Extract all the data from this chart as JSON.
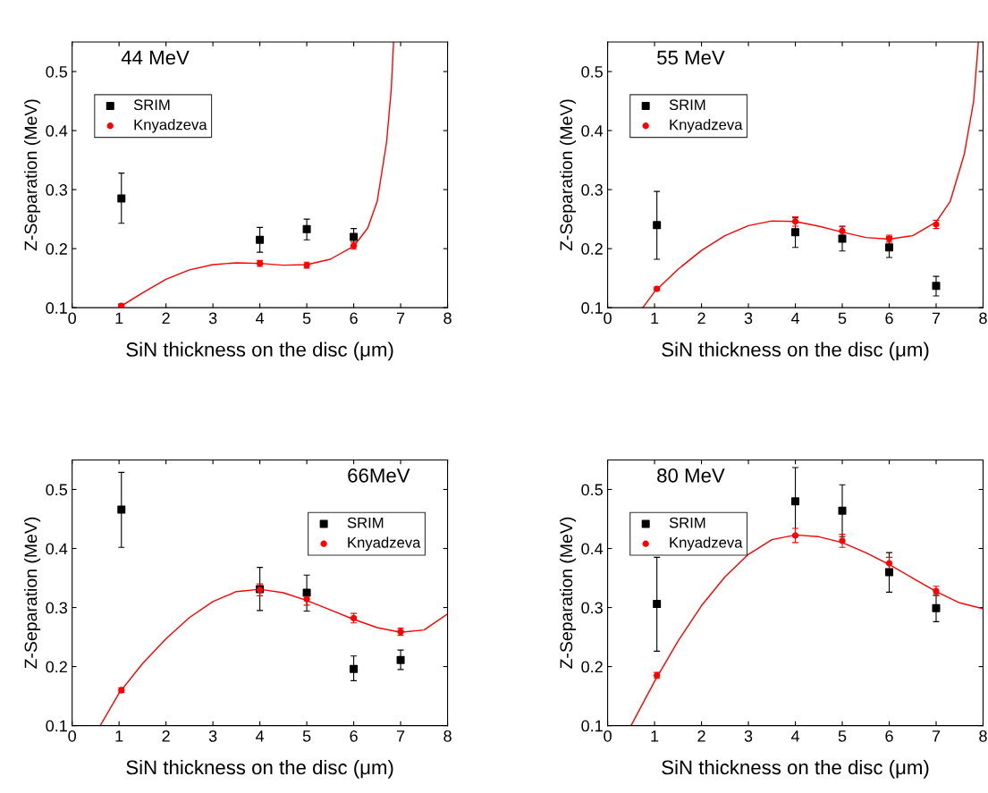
{
  "chart_data": [
    {
      "type": "scatter",
      "title": "44 MeV",
      "xlabel": "SiN thickness on the disc (μm)",
      "ylabel": "Z-Separation (MeV)",
      "xlim": [
        0,
        8
      ],
      "ylim": [
        0.1,
        0.55
      ],
      "xticks": [
        0,
        1,
        2,
        3,
        4,
        5,
        6,
        7,
        8
      ],
      "yticks": [
        0.1,
        0.2,
        0.3,
        0.4,
        0.5
      ],
      "legend": "top left",
      "grid": false,
      "series": [
        {
          "name": "SRIM",
          "color": "#000000",
          "marker": "square",
          "x": [
            1.05,
            4,
            5,
            6
          ],
          "values": [
            0.285,
            0.215,
            0.233,
            0.22
          ],
          "errors": [
            [
              0.243,
              0.328
            ],
            [
              0.194,
              0.236
            ],
            [
              0.215,
              0.25
            ],
            [
              0.205,
              0.234
            ]
          ]
        },
        {
          "name": "Knyadzeva",
          "color": "#ff0000",
          "marker": "circle",
          "x": [
            1.05,
            4,
            5,
            6
          ],
          "values": [
            0.103,
            0.175,
            0.172,
            0.205
          ],
          "errors": [
            [
              0.1,
              0.106
            ],
            [
              0.17,
              0.18
            ],
            [
              0.167,
              0.177
            ],
            [
              0.199,
              0.211
            ]
          ]
        },
        {
          "type": "line",
          "color": "#ff0000",
          "marker": "none",
          "x": [
            1.05,
            1.5,
            2,
            2.5,
            3,
            3.5,
            4,
            4.5,
            5,
            5.5,
            6,
            6.3,
            6.5,
            6.7,
            6.8,
            6.85
          ],
          "values": [
            0.103,
            0.125,
            0.148,
            0.164,
            0.173,
            0.176,
            0.175,
            0.172,
            0.173,
            0.182,
            0.204,
            0.235,
            0.28,
            0.38,
            0.47,
            0.55
          ]
        }
      ]
    },
    {
      "type": "scatter",
      "title": "55 MeV",
      "xlabel": "SiN thickness on the disc (μm)",
      "ylabel": "Z-Separation (MeV)",
      "xlim": [
        0,
        8
      ],
      "ylim": [
        0.1,
        0.55
      ],
      "xticks": [
        0,
        1,
        2,
        3,
        4,
        5,
        6,
        7,
        8
      ],
      "yticks": [
        0.1,
        0.2,
        0.3,
        0.4,
        0.5
      ],
      "legend": "top left",
      "grid": false,
      "series": [
        {
          "name": "SRIM",
          "color": "#000000",
          "marker": "square",
          "x": [
            1.05,
            4,
            5,
            6,
            7
          ],
          "values": [
            0.24,
            0.228,
            0.217,
            0.202,
            0.137
          ],
          "errors": [
            [
              0.182,
              0.297
            ],
            [
              0.202,
              0.252
            ],
            [
              0.196,
              0.238
            ],
            [
              0.185,
              0.22
            ],
            [
              0.12,
              0.153
            ]
          ]
        },
        {
          "name": "Knyadzeva",
          "color": "#ff0000",
          "marker": "circle",
          "x": [
            1.05,
            4,
            5,
            6,
            7
          ],
          "values": [
            0.132,
            0.246,
            0.23,
            0.217,
            0.241
          ],
          "errors": [
            [
              0.129,
              0.135
            ],
            [
              0.238,
              0.254
            ],
            [
              0.223,
              0.237
            ],
            [
              0.211,
              0.223
            ],
            [
              0.234,
              0.248
            ]
          ]
        },
        {
          "type": "line",
          "color": "#ff0000",
          "marker": "none",
          "x": [
            0.75,
            1,
            1.5,
            2,
            2.5,
            3,
            3.5,
            4,
            4.5,
            5,
            5.5,
            6,
            6.5,
            7,
            7.3,
            7.6,
            7.8,
            7.9
          ],
          "values": [
            0.1,
            0.127,
            0.165,
            0.197,
            0.222,
            0.239,
            0.247,
            0.246,
            0.238,
            0.228,
            0.219,
            0.216,
            0.222,
            0.245,
            0.28,
            0.36,
            0.45,
            0.55
          ]
        }
      ]
    },
    {
      "type": "scatter",
      "title": "66MeV",
      "xlabel": "SiN thickness on the disc (μm)",
      "ylabel": "Z-Separation (MeV)",
      "xlim": [
        0,
        8
      ],
      "ylim": [
        0.1,
        0.55
      ],
      "xticks": [
        0,
        1,
        2,
        3,
        4,
        5,
        6,
        7,
        8
      ],
      "yticks": [
        0.1,
        0.2,
        0.3,
        0.4,
        0.5
      ],
      "legend": "top right",
      "grid": false,
      "series": [
        {
          "name": "SRIM",
          "color": "#000000",
          "marker": "square",
          "x": [
            1.05,
            4,
            5,
            6,
            7
          ],
          "values": [
            0.466,
            0.331,
            0.325,
            0.196,
            0.211
          ],
          "errors": [
            [
              0.402,
              0.529
            ],
            [
              0.295,
              0.368
            ],
            [
              0.294,
              0.355
            ],
            [
              0.176,
              0.218
            ],
            [
              0.195,
              0.228
            ]
          ]
        },
        {
          "name": "Knyadzeva",
          "color": "#ff0000",
          "marker": "circle",
          "x": [
            1.05,
            4,
            5,
            6,
            7
          ],
          "values": [
            0.16,
            0.33,
            0.314,
            0.282,
            0.259
          ],
          "errors": [
            [
              0.156,
              0.164
            ],
            [
              0.32,
              0.34
            ],
            [
              0.304,
              0.324
            ],
            [
              0.274,
              0.29
            ],
            [
              0.253,
              0.265
            ]
          ]
        },
        {
          "type": "line",
          "color": "#ff0000",
          "marker": "none",
          "x": [
            0.6,
            1,
            1.5,
            2,
            2.5,
            3,
            3.5,
            4,
            4.5,
            5,
            5.5,
            6,
            6.5,
            7,
            7.5,
            8
          ],
          "values": [
            0.1,
            0.155,
            0.205,
            0.247,
            0.283,
            0.31,
            0.327,
            0.331,
            0.325,
            0.312,
            0.296,
            0.28,
            0.266,
            0.258,
            0.262,
            0.289
          ]
        }
      ]
    },
    {
      "type": "scatter",
      "title": "80 MeV",
      "xlabel": "SiN thickness on the disc (μm)",
      "ylabel": "Z-Separation (MeV)",
      "xlim": [
        0,
        8
      ],
      "ylim": [
        0.1,
        0.55
      ],
      "xticks": [
        0,
        1,
        2,
        3,
        4,
        5,
        6,
        7,
        8
      ],
      "yticks": [
        0.1,
        0.2,
        0.3,
        0.4,
        0.5
      ],
      "legend": "top left",
      "grid": false,
      "series": [
        {
          "name": "SRIM",
          "color": "#000000",
          "marker": "square",
          "x": [
            1.05,
            4,
            5,
            6,
            7
          ],
          "values": [
            0.306,
            0.48,
            0.464,
            0.36,
            0.299
          ],
          "errors": [
            [
              0.226,
              0.385
            ],
            [
              0.423,
              0.537
            ],
            [
              0.42,
              0.508
            ],
            [
              0.326,
              0.393
            ],
            [
              0.276,
              0.322
            ]
          ]
        },
        {
          "name": "Knyadzeva",
          "color": "#ff0000",
          "marker": "circle",
          "x": [
            1.05,
            4,
            5,
            6,
            7
          ],
          "values": [
            0.185,
            0.422,
            0.413,
            0.375,
            0.328
          ],
          "errors": [
            [
              0.18,
              0.19
            ],
            [
              0.41,
              0.434
            ],
            [
              0.402,
              0.424
            ],
            [
              0.365,
              0.385
            ],
            [
              0.32,
              0.336
            ]
          ]
        },
        {
          "type": "line",
          "color": "#ff0000",
          "marker": "none",
          "x": [
            0.5,
            1,
            1.5,
            2,
            2.5,
            3,
            3.5,
            4,
            4.5,
            5,
            5.5,
            6,
            6.5,
            7,
            7.5,
            8
          ],
          "values": [
            0.1,
            0.175,
            0.243,
            0.303,
            0.352,
            0.39,
            0.415,
            0.423,
            0.42,
            0.41,
            0.393,
            0.373,
            0.35,
            0.327,
            0.308,
            0.298
          ]
        }
      ]
    }
  ]
}
